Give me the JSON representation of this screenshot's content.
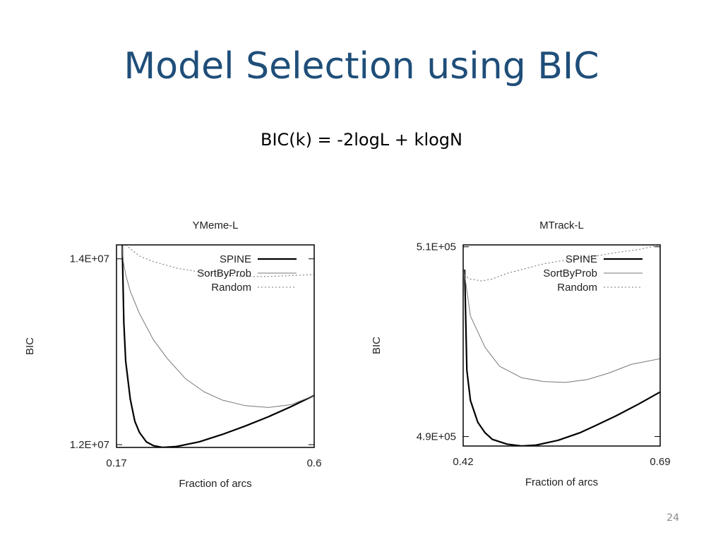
{
  "slide": {
    "title": "Model Selection using BIC",
    "formula": "BIC(k) = -2logL + klogN",
    "page_number": "24",
    "title_color": "#1f4e79"
  },
  "chart_data": [
    {
      "type": "line",
      "title": "YMeme-L",
      "xlabel": "Fraction of arcs",
      "ylabel": "BIC",
      "xlim": [
        0.17,
        0.6
      ],
      "ylim": [
        11970000,
        14150000
      ],
      "x_ticks": [
        {
          "value": 0.17,
          "label": "0.17"
        },
        {
          "value": 0.6,
          "label": "0.6"
        }
      ],
      "y_ticks": [
        {
          "value": 14000000,
          "label": "1.4E+07"
        },
        {
          "value": 12000000,
          "label": "1.2E+07"
        }
      ],
      "legend_position": "top-right",
      "grid": false,
      "series": [
        {
          "name": "SPINE",
          "style": "solid-thick",
          "color": "#000000",
          "points": [
            [
              0.1825,
              14150000
            ],
            [
              0.186,
              13310000
            ],
            [
              0.19,
              12900000
            ],
            [
              0.2,
              12490000
            ],
            [
              0.21,
              12250000
            ],
            [
              0.22,
              12130000
            ],
            [
              0.235,
              12030000
            ],
            [
              0.25,
              11990000
            ],
            [
              0.27,
              11970000
            ],
            [
              0.3,
              11980000
            ],
            [
              0.35,
              12030000
            ],
            [
              0.4,
              12110000
            ],
            [
              0.45,
              12200000
            ],
            [
              0.5,
              12300000
            ],
            [
              0.55,
              12410000
            ],
            [
              0.6,
              12530000
            ]
          ]
        },
        {
          "name": "SortByProb",
          "style": "solid-thin",
          "color": "#777777",
          "points": [
            [
              0.182,
              14150000
            ],
            [
              0.185,
              13960000
            ],
            [
              0.19,
              13830000
            ],
            [
              0.2,
              13650000
            ],
            [
              0.22,
              13410000
            ],
            [
              0.25,
              13130000
            ],
            [
              0.28,
              12930000
            ],
            [
              0.32,
              12710000
            ],
            [
              0.36,
              12570000
            ],
            [
              0.4,
              12480000
            ],
            [
              0.45,
              12420000
            ],
            [
              0.5,
              12400000
            ],
            [
              0.55,
              12430000
            ],
            [
              0.6,
              12530000
            ]
          ]
        },
        {
          "name": "Random",
          "style": "dotted",
          "color": "#777777",
          "points": [
            [
              0.19,
              14150000
            ],
            [
              0.2,
              14110000
            ],
            [
              0.22,
              14030000
            ],
            [
              0.25,
              13970000
            ],
            [
              0.28,
              13930000
            ],
            [
              0.3,
              13900000
            ],
            [
              0.35,
              13860000
            ],
            [
              0.4,
              13830000
            ],
            [
              0.45,
              13810000
            ],
            [
              0.5,
              13810000
            ],
            [
              0.55,
              13820000
            ],
            [
              0.6,
              13830000
            ]
          ]
        }
      ]
    },
    {
      "type": "line",
      "title": "MTrack-L",
      "xlabel": "Fraction of arcs",
      "ylabel": "BIC",
      "xlim": [
        0.42,
        0.69
      ],
      "ylim": [
        489000,
        510200
      ],
      "x_ticks": [
        {
          "value": 0.42,
          "label": "0.42"
        },
        {
          "value": 0.69,
          "label": "0.69"
        }
      ],
      "y_ticks": [
        {
          "value": 510000,
          "label": "5.1E+05"
        },
        {
          "value": 490000,
          "label": "4.9E+05"
        }
      ],
      "legend_position": "top-right",
      "grid": false,
      "series": [
        {
          "name": "SPINE",
          "style": "solid-thick",
          "color": "#000000",
          "points": [
            [
              0.422,
              507600
            ],
            [
              0.425,
              497000
            ],
            [
              0.43,
              493800
            ],
            [
              0.44,
              491500
            ],
            [
              0.45,
              490400
            ],
            [
              0.46,
              489700
            ],
            [
              0.48,
              489200
            ],
            [
              0.5,
              489000
            ],
            [
              0.52,
              489100
            ],
            [
              0.55,
              489600
            ],
            [
              0.58,
              490400
            ],
            [
              0.6,
              491100
            ],
            [
              0.63,
              492200
            ],
            [
              0.66,
              493400
            ],
            [
              0.69,
              494700
            ]
          ]
        },
        {
          "name": "SortByProb",
          "style": "solid-thin",
          "color": "#777777",
          "points": [
            [
              0.421,
              507600
            ],
            [
              0.43,
              502700
            ],
            [
              0.45,
              499400
            ],
            [
              0.47,
              497400
            ],
            [
              0.5,
              496200
            ],
            [
              0.53,
              495800
            ],
            [
              0.56,
              495700
            ],
            [
              0.59,
              496000
            ],
            [
              0.62,
              496700
            ],
            [
              0.65,
              497600
            ],
            [
              0.69,
              498200
            ]
          ]
        },
        {
          "name": "Random",
          "style": "dotted",
          "color": "#777777",
          "points": [
            [
              0.421,
              507000
            ],
            [
              0.43,
              506600
            ],
            [
              0.445,
              506400
            ],
            [
              0.46,
              506600
            ],
            [
              0.48,
              507200
            ],
            [
              0.5,
              507600
            ],
            [
              0.53,
              508200
            ],
            [
              0.56,
              508600
            ],
            [
              0.6,
              509000
            ],
            [
              0.63,
              509400
            ],
            [
              0.66,
              509700
            ],
            [
              0.69,
              510200
            ]
          ]
        }
      ]
    }
  ]
}
